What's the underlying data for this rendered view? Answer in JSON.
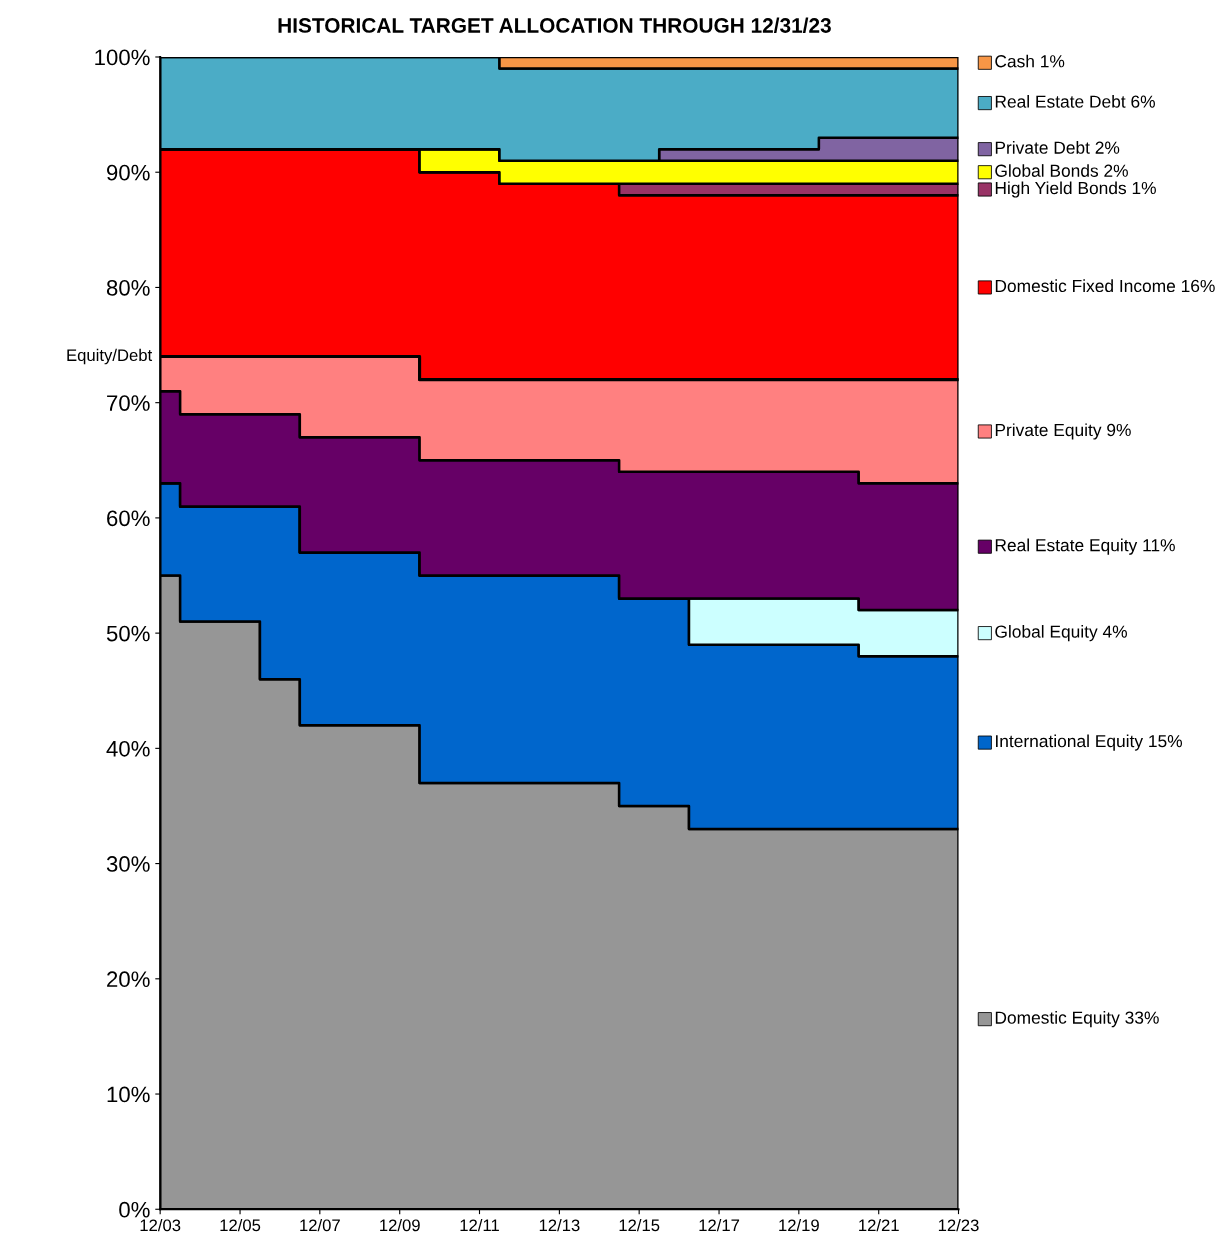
{
  "chart_data": {
    "type": "area",
    "stacked": true,
    "line_style": "solid",
    "title": "HISTORICAL TARGET ALLOCATION THROUGH 12/31/23",
    "x": [
      "2003-12",
      "2004-06",
      "2006-06",
      "2007-06",
      "2010-06",
      "2012-06",
      "2015-06",
      "2016-06",
      "2017-03",
      "2020-06",
      "2021-06",
      "2023-12"
    ],
    "series": [
      {
        "name": "Domestic Equity 33%",
        "color": "#969696",
        "values": [
          55,
          51,
          46,
          42,
          37,
          37,
          35,
          35,
          33,
          33,
          33,
          33
        ]
      },
      {
        "name": "International Equity 15%",
        "color": "#0066cc",
        "values": [
          8,
          10,
          15,
          15,
          18,
          18,
          18,
          18,
          16,
          16,
          15,
          15
        ]
      },
      {
        "name": "Global Equity 4%",
        "color": "#ccffff",
        "values": [
          0,
          0,
          0,
          0,
          0,
          0,
          0,
          0,
          4,
          4,
          4,
          4
        ]
      },
      {
        "name": "Real Estate Equity 11%",
        "color": "#660066",
        "values": [
          8,
          8,
          8,
          10,
          10,
          10,
          11,
          11,
          11,
          11,
          11,
          11
        ]
      },
      {
        "name": "Private Equity 9%",
        "color": "#ff8080",
        "values": [
          3,
          5,
          5,
          7,
          7,
          7,
          8,
          8,
          8,
          8,
          9,
          9
        ]
      },
      {
        "name": "Domestic Fixed Income 16%",
        "color": "#ff0000",
        "values": [
          18,
          18,
          18,
          18,
          18,
          17,
          16,
          16,
          16,
          16,
          16,
          16
        ]
      },
      {
        "name": "High Yield Bonds 1%",
        "color": "#993366",
        "values": [
          0,
          0,
          0,
          0,
          0,
          0,
          1,
          1,
          1,
          1,
          1,
          1
        ]
      },
      {
        "name": "Global Bonds 2%",
        "color": "#ffff00",
        "values": [
          0,
          0,
          0,
          0,
          2,
          2,
          2,
          2,
          2,
          2,
          2,
          2
        ]
      },
      {
        "name": "Private Debt 2%",
        "color": "#8064a2",
        "values": [
          0,
          0,
          0,
          0,
          0,
          0,
          0,
          1,
          1,
          2,
          2,
          2
        ]
      },
      {
        "name": "Real Estate Debt 6%",
        "color": "#4bacc6",
        "values": [
          8,
          8,
          8,
          8,
          8,
          8,
          8,
          7,
          7,
          6,
          6,
          6
        ]
      },
      {
        "name": "Cash 1%",
        "color": "#f79646",
        "values": [
          0,
          0,
          0,
          0,
          0,
          1,
          1,
          1,
          1,
          1,
          1,
          1
        ]
      },
      {
        "name": "Equity/Debt",
        "type": "step",
        "color": "#000000",
        "values": [
          74,
          74,
          74,
          74,
          72,
          72,
          72,
          72,
          72,
          72,
          72,
          72
        ]
      }
    ],
    "ylim": [
      0,
      100
    ],
    "yticks": [
      {
        "value": 0,
        "label": "0%"
      },
      {
        "value": 10,
        "label": "10%"
      },
      {
        "value": 20,
        "label": "20%"
      },
      {
        "value": 30,
        "label": "30%"
      },
      {
        "value": 40,
        "label": "40%"
      },
      {
        "value": 50,
        "label": "50%"
      },
      {
        "value": 60,
        "label": "60%"
      },
      {
        "value": 70,
        "label": "70%"
      },
      {
        "value": 80,
        "label": "80%"
      },
      {
        "value": 90,
        "label": "90%"
      },
      {
        "value": 100,
        "label": "100%"
      }
    ],
    "xlim": [
      "2003-12",
      "2023-12"
    ],
    "xticks": [
      {
        "value": "2003-12",
        "label": "12/03"
      },
      {
        "value": "2005-12",
        "label": "12/05"
      },
      {
        "value": "2007-12",
        "label": "12/07"
      },
      {
        "value": "2009-12",
        "label": "12/09"
      },
      {
        "value": "2011-12",
        "label": "12/11"
      },
      {
        "value": "2013-12",
        "label": "12/13"
      },
      {
        "value": "2015-12",
        "label": "12/15"
      },
      {
        "value": "2017-12",
        "label": "12/17"
      },
      {
        "value": "2019-12",
        "label": "12/19"
      },
      {
        "value": "2021-12",
        "label": "12/21"
      },
      {
        "value": "2023-12",
        "label": "12/23"
      }
    ],
    "legend": "right",
    "grid": false
  }
}
